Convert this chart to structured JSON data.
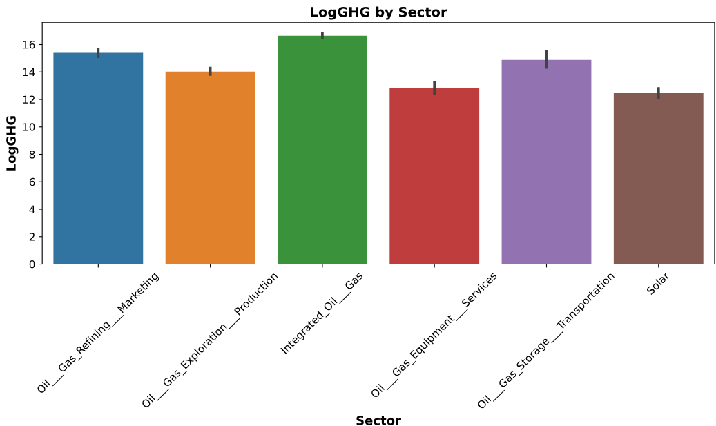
{
  "chart_data": {
    "type": "bar",
    "title": "LogGHG by Sector",
    "xlabel": "Sector",
    "ylabel": "LogGHG",
    "categories": [
      "Oil___Gas_Refining___Marketing",
      "Oil___Gas_Exploration___Production",
      "Integrated_Oil___Gas",
      "Oil___Gas_Equipment___Services",
      "Oil___Gas_Storage___Transportation",
      "Solar"
    ],
    "values": [
      15.4,
      14.03,
      16.64,
      12.84,
      14.88,
      12.45
    ],
    "errors": [
      [
        15.02,
        15.76
      ],
      [
        13.72,
        14.38
      ],
      [
        16.4,
        16.91
      ],
      [
        12.33,
        13.36
      ],
      [
        14.24,
        15.61
      ],
      [
        12.0,
        12.89
      ]
    ],
    "colors": [
      "#3274a1",
      "#e1812c",
      "#3a923a",
      "#c03d3e",
      "#9372b2",
      "#845b53"
    ],
    "ylim": [
      0,
      17.6
    ],
    "yticks": [
      0,
      2,
      4,
      6,
      8,
      10,
      12,
      14,
      16
    ],
    "grid": false,
    "legend": false
  }
}
